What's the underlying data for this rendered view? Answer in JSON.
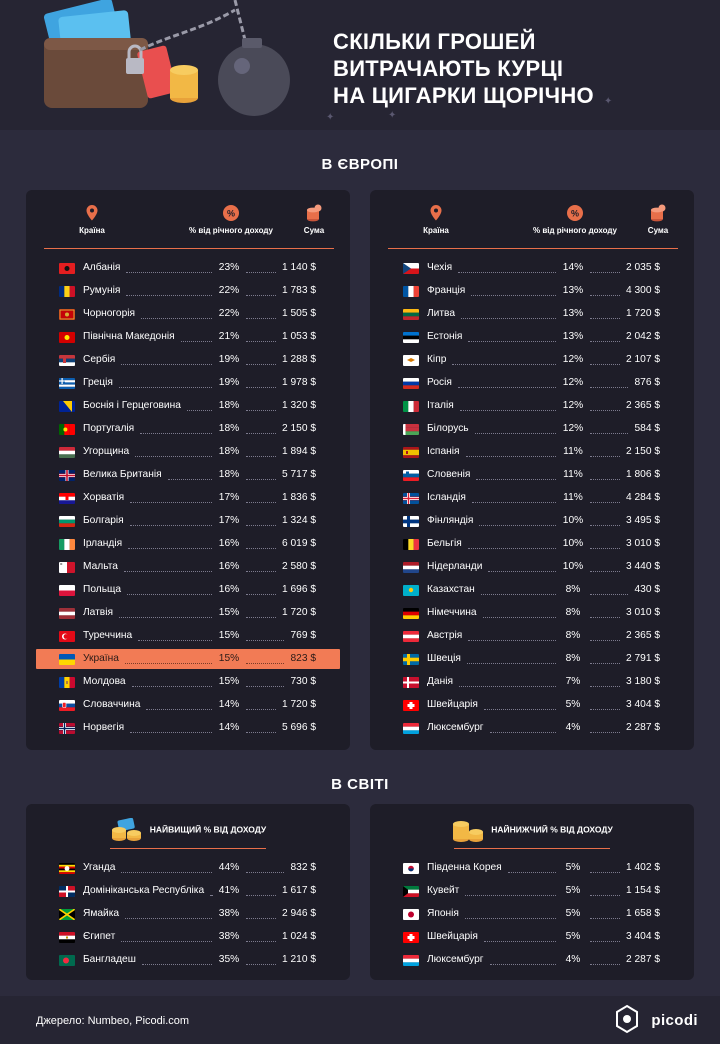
{
  "header": {
    "title_line1": "СКІЛЬКИ ГРОШЕЙ",
    "title_line2": "ВИТРАЧАЮТЬ КУРЦІ",
    "title_line3": "НА ЦИГАРКИ ЩОРІЧНО"
  },
  "europe": {
    "title": "В ЄВРОПІ",
    "col_country": "Країна",
    "col_percent": "% від річного доходу",
    "col_amount": "Сума",
    "left": [
      {
        "name": "Албанія",
        "pct": "23%",
        "amt": "1 140 $",
        "flag": "al"
      },
      {
        "name": "Румунія",
        "pct": "22%",
        "amt": "1 783 $",
        "flag": "ro"
      },
      {
        "name": "Чорногорія",
        "pct": "22%",
        "amt": "1 505 $",
        "flag": "me"
      },
      {
        "name": "Північна Македонія",
        "pct": "21%",
        "amt": "1 053 $",
        "flag": "mk"
      },
      {
        "name": "Сербія",
        "pct": "19%",
        "amt": "1 288 $",
        "flag": "rs"
      },
      {
        "name": "Греція",
        "pct": "19%",
        "amt": "1 978 $",
        "flag": "gr"
      },
      {
        "name": "Боснія і Герцеговина",
        "pct": "18%",
        "amt": "1 320 $",
        "flag": "ba"
      },
      {
        "name": "Португалія",
        "pct": "18%",
        "amt": "2 150 $",
        "flag": "pt"
      },
      {
        "name": "Угорщина",
        "pct": "18%",
        "amt": "1 894 $",
        "flag": "hu"
      },
      {
        "name": "Велика Британія",
        "pct": "18%",
        "amt": "5 717 $",
        "flag": "gb"
      },
      {
        "name": "Хорватія",
        "pct": "17%",
        "amt": "1 836 $",
        "flag": "hr"
      },
      {
        "name": "Болгарія",
        "pct": "17%",
        "amt": "1 324 $",
        "flag": "bg"
      },
      {
        "name": "Ірландія",
        "pct": "16%",
        "amt": "6 019 $",
        "flag": "ie"
      },
      {
        "name": "Мальта",
        "pct": "16%",
        "amt": "2 580 $",
        "flag": "mt"
      },
      {
        "name": "Польща",
        "pct": "16%",
        "amt": "1 696 $",
        "flag": "pl"
      },
      {
        "name": "Латвія",
        "pct": "15%",
        "amt": "1 720 $",
        "flag": "lv"
      },
      {
        "name": "Туреччина",
        "pct": "15%",
        "amt": "769 $",
        "flag": "tr"
      },
      {
        "name": "Україна",
        "pct": "15%",
        "amt": "823 $",
        "flag": "ua",
        "highlight": true
      },
      {
        "name": "Молдова",
        "pct": "15%",
        "amt": "730 $",
        "flag": "md"
      },
      {
        "name": "Словаччина",
        "pct": "14%",
        "amt": "1 720 $",
        "flag": "sk"
      },
      {
        "name": "Норвегія",
        "pct": "14%",
        "amt": "5 696 $",
        "flag": "no"
      }
    ],
    "right": [
      {
        "name": "Чехія",
        "pct": "14%",
        "amt": "2 035 $",
        "flag": "cz"
      },
      {
        "name": "Франція",
        "pct": "13%",
        "amt": "4 300 $",
        "flag": "fr"
      },
      {
        "name": "Литва",
        "pct": "13%",
        "amt": "1 720 $",
        "flag": "lt"
      },
      {
        "name": "Естонія",
        "pct": "13%",
        "amt": "2 042 $",
        "flag": "ee"
      },
      {
        "name": "Кіпр",
        "pct": "12%",
        "amt": "2 107 $",
        "flag": "cy"
      },
      {
        "name": "Росія",
        "pct": "12%",
        "amt": "876 $",
        "flag": "ru"
      },
      {
        "name": "Італія",
        "pct": "12%",
        "amt": "2 365 $",
        "flag": "it"
      },
      {
        "name": "Білорусь",
        "pct": "12%",
        "amt": "584 $",
        "flag": "by"
      },
      {
        "name": "Іспанія",
        "pct": "11%",
        "amt": "2 150 $",
        "flag": "es"
      },
      {
        "name": "Словенія",
        "pct": "11%",
        "amt": "1 806 $",
        "flag": "si"
      },
      {
        "name": "Ісландія",
        "pct": "11%",
        "amt": "4 284 $",
        "flag": "is"
      },
      {
        "name": "Фінляндія",
        "pct": "10%",
        "amt": "3 495 $",
        "flag": "fi"
      },
      {
        "name": "Бельгія",
        "pct": "10%",
        "amt": "3 010 $",
        "flag": "be"
      },
      {
        "name": "Нідерланди",
        "pct": "10%",
        "amt": "3 440 $",
        "flag": "nl"
      },
      {
        "name": "Казахстан",
        "pct": "8%",
        "amt": "430 $",
        "flag": "kz"
      },
      {
        "name": "Німеччина",
        "pct": "8%",
        "amt": "3 010 $",
        "flag": "de"
      },
      {
        "name": "Австрія",
        "pct": "8%",
        "amt": "2 365 $",
        "flag": "at"
      },
      {
        "name": "Швеція",
        "pct": "8%",
        "amt": "2 791 $",
        "flag": "se"
      },
      {
        "name": "Данія",
        "pct": "7%",
        "amt": "3 180 $",
        "flag": "dk"
      },
      {
        "name": "Швейцарія",
        "pct": "5%",
        "amt": "3 404 $",
        "flag": "ch"
      },
      {
        "name": "Люксембург",
        "pct": "4%",
        "amt": "2 287 $",
        "flag": "lu"
      }
    ]
  },
  "world": {
    "title": "В СВІТІ",
    "highest_label": "НАЙВИЩИЙ % ВІД ДОХОДУ",
    "lowest_label": "НАЙНИЖЧИЙ % ВІД ДОХОДУ",
    "highest": [
      {
        "name": "Уганда",
        "pct": "44%",
        "amt": "832 $",
        "flag": "ug"
      },
      {
        "name": "Домініканська Республіка",
        "pct": "41%",
        "amt": "1 617 $",
        "flag": "do"
      },
      {
        "name": "Ямайка",
        "pct": "38%",
        "amt": "2 946 $",
        "flag": "jm"
      },
      {
        "name": "Єгипет",
        "pct": "38%",
        "amt": "1 024 $",
        "flag": "eg"
      },
      {
        "name": "Бангладеш",
        "pct": "35%",
        "amt": "1 210 $",
        "flag": "bd"
      }
    ],
    "lowest": [
      {
        "name": "Південна Корея",
        "pct": "5%",
        "amt": "1 402 $",
        "flag": "kr"
      },
      {
        "name": "Кувейт",
        "pct": "5%",
        "amt": "1 154 $",
        "flag": "kw"
      },
      {
        "name": "Японія",
        "pct": "5%",
        "amt": "1 658 $",
        "flag": "jp"
      },
      {
        "name": "Швейцарія",
        "pct": "5%",
        "amt": "3 404 $",
        "flag": "ch"
      },
      {
        "name": "Люксембург",
        "pct": "4%",
        "amt": "2 287 $",
        "flag": "lu"
      }
    ]
  },
  "footer": {
    "source": "Джерело: Numbeo, Picodi.com",
    "brand": "picodi"
  },
  "colors": {
    "accent": "#f27b55",
    "background": "#2c2b3c",
    "card": "#1e1d28"
  }
}
